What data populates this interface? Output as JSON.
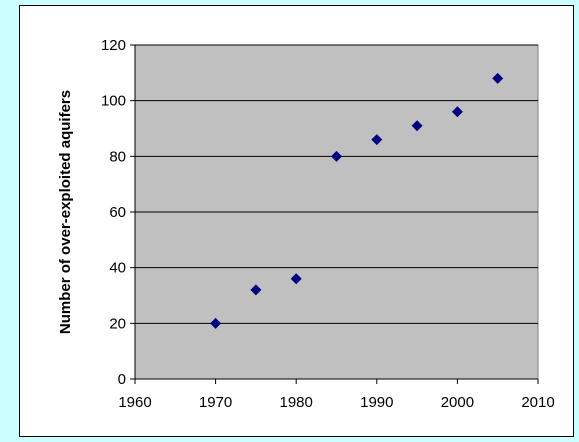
{
  "chart_data": {
    "type": "scatter",
    "title": "",
    "xlabel": "",
    "ylabel": "Number of over-exploited aquifers",
    "xlim": [
      1960,
      2010
    ],
    "ylim": [
      0,
      120
    ],
    "xticks": [
      1960,
      1970,
      1980,
      1990,
      2000,
      2010
    ],
    "yticks": [
      0,
      20,
      40,
      60,
      80,
      100,
      120
    ],
    "grid": "horizontal",
    "legend": "none",
    "plot_background": "#c0c0c0",
    "marker_color": "#000080",
    "marker": "diamond",
    "points": [
      {
        "x": 1970,
        "y": 20
      },
      {
        "x": 1975,
        "y": 32
      },
      {
        "x": 1980,
        "y": 36
      },
      {
        "x": 1985,
        "y": 80
      },
      {
        "x": 1990,
        "y": 86
      },
      {
        "x": 1995,
        "y": 91
      },
      {
        "x": 2000,
        "y": 96
      },
      {
        "x": 2005,
        "y": 108
      }
    ]
  },
  "colors": {
    "page_background": "#ccffff",
    "chart_area": "#ffffff",
    "grid": "#000000"
  }
}
